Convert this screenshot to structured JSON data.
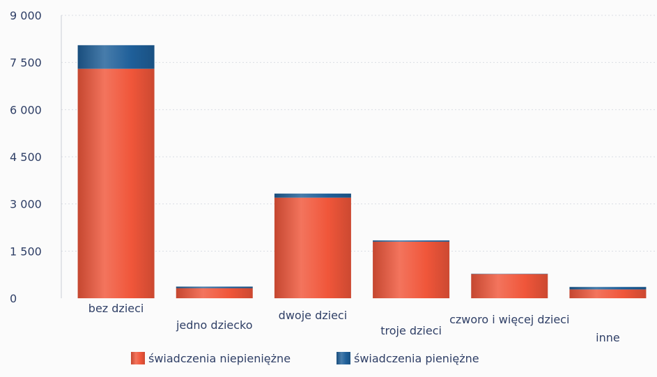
{
  "chart_data": {
    "type": "bar",
    "stacked": true,
    "categories": [
      "bez dzieci",
      "jedno dziecko",
      "dwoje dzieci",
      "troje dzieci",
      "czworo i więcej dzieci",
      "inne"
    ],
    "series": [
      {
        "name": "świadczenia niepieniężne",
        "color": "#f0563a",
        "values": [
          7300,
          320,
          3200,
          1800,
          770,
          280
        ]
      },
      {
        "name": "świadczenia pieniężne",
        "color": "#1f5f99",
        "values": [
          750,
          50,
          130,
          40,
          10,
          80
        ]
      }
    ],
    "y_ticks": [
      "0",
      "1 500",
      "3 000",
      "4 500",
      "6 000",
      "7 500",
      "9 000"
    ],
    "ylim": [
      0,
      9000
    ],
    "grid": true,
    "legend_position": "bottom"
  }
}
